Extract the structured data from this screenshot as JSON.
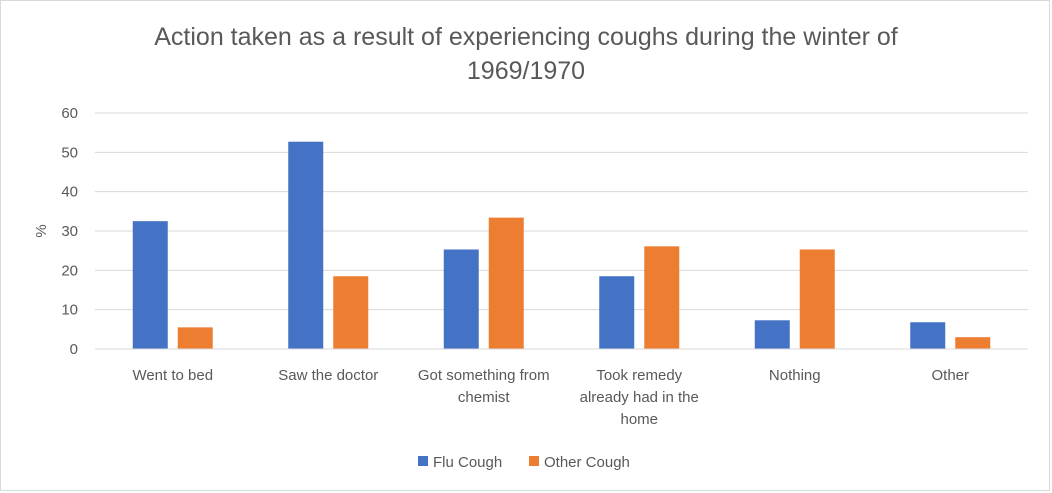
{
  "chart_data": {
    "type": "bar",
    "title": "Action taken as a result of experiencing coughs during the winter of 1969/1970",
    "title_lines": [
      "Action taken as a result of experiencing coughs during the winter of",
      "1969/1970"
    ],
    "xlabel": "",
    "ylabel": "%",
    "ylim": [
      0,
      60
    ],
    "yticks": [
      0,
      10,
      20,
      30,
      40,
      50,
      60
    ],
    "grid": true,
    "legend_position": "bottom",
    "categories": [
      "Went to bed",
      "Saw the doctor",
      "Got something from chemist",
      "Took remedy already had in the home",
      "Nothing",
      "Other"
    ],
    "category_lines": [
      [
        "Went to bed"
      ],
      [
        "Saw the doctor"
      ],
      [
        "Got something from",
        "chemist"
      ],
      [
        "Took remedy",
        "already had in the",
        "home"
      ],
      [
        "Nothing"
      ],
      [
        "Other"
      ]
    ],
    "series": [
      {
        "name": "Flu Cough",
        "color": "#4472c4",
        "values": [
          32.5,
          52.7,
          25.3,
          18.5,
          7.3,
          6.8
        ]
      },
      {
        "name": "Other Cough",
        "color": "#ed7d31",
        "values": [
          5.5,
          18.5,
          33.4,
          26.1,
          25.3,
          3.0
        ]
      }
    ]
  }
}
